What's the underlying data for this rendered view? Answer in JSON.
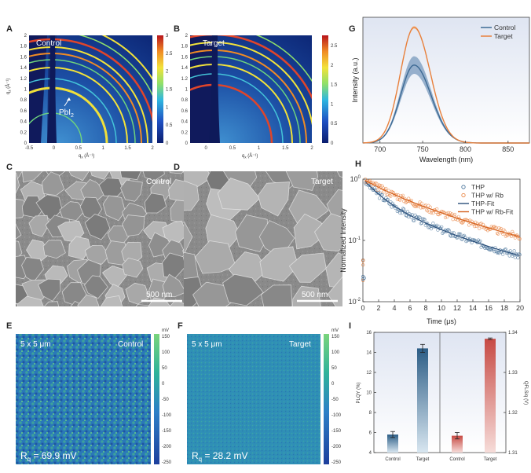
{
  "panels": {
    "A": {
      "letter": "A",
      "label": "Control",
      "annotation": "PbI",
      "annotation_sub": "2",
      "xlabel": "q",
      "xlabel_sub": "x",
      "xlabel_unit": " (Å⁻¹)",
      "ylabel": "q",
      "ylabel_sub": "z",
      "ylabel_unit": " (Å⁻¹)",
      "x_ticks": [
        "-0.5",
        "0",
        "0.5",
        "1",
        "1.5",
        "2"
      ],
      "y_ticks": [
        "0",
        "0.2",
        "0.4",
        "0.6",
        "0.8",
        "1",
        "1.2",
        "1.4",
        "1.6",
        "1.8",
        "2"
      ],
      "cbar_ticks": [
        "0",
        "0.5",
        "1",
        "1.5",
        "2",
        "2.5",
        "3"
      ]
    },
    "B": {
      "letter": "B",
      "label": "Target",
      "xlabel": "q",
      "xlabel_sub": "x",
      "xlabel_unit": " (Å⁻¹)",
      "x_ticks": [
        "0",
        "0.5",
        "1",
        "1.5",
        "2"
      ],
      "y_ticks": [
        "0",
        "0.2",
        "0.4",
        "0.6",
        "0.8",
        "1",
        "1.2",
        "1.4",
        "1.6",
        "1.8",
        "2"
      ],
      "cbar_ticks": [
        "0",
        "0.5",
        "1",
        "1.5",
        "2",
        "2.5"
      ]
    },
    "C": {
      "letter": "C",
      "label": "Control",
      "scale": "500 nm"
    },
    "D": {
      "letter": "D",
      "label": "Target",
      "scale": "500 nm"
    },
    "E": {
      "letter": "E",
      "size": "5 x 5 μm",
      "label": "Control",
      "rq_prefix": "R",
      "rq_sub": "q",
      "rq_value": " = 69.9 mV",
      "cbar_unit": "mV",
      "cbar_ticks": [
        "150",
        "100",
        "50",
        "0",
        "-50",
        "-100",
        "-150",
        "-200",
        "-250"
      ]
    },
    "F": {
      "letter": "F",
      "size": "5 x 5 μm",
      "label": "Target",
      "rq_prefix": "R",
      "rq_sub": "q",
      "rq_value": " = 28.2 mV",
      "cbar_unit": "mV",
      "cbar_ticks": [
        "150",
        "100",
        "50",
        "0",
        "-50",
        "-100",
        "-150",
        "-200",
        "-250"
      ]
    },
    "G": {
      "letter": "G"
    },
    "H": {
      "letter": "H"
    },
    "I": {
      "letter": "I"
    }
  },
  "colors": {
    "control": "#3d6a94",
    "target": "#e8803c",
    "control_fill": "#7f9fc0",
    "target_fill": "#f3c59d",
    "bar_red": "#c9504a"
  },
  "chart_data": [
    {
      "id": "G",
      "type": "line",
      "xlabel": "Wavelength (nm)",
      "ylabel": "Intensity (a.u.)",
      "xlim": [
        680,
        875
      ],
      "x_ticks": [
        700,
        750,
        800,
        850
      ],
      "series": [
        {
          "name": "Control",
          "peak_x": 740,
          "peak_y": 0.62,
          "band": 0.07,
          "sigma_left": 16,
          "sigma_right": 20
        },
        {
          "name": "Target",
          "peak_x": 740,
          "peak_y": 0.92,
          "band": 0.012,
          "sigma_left": 16,
          "sigma_right": 19
        }
      ],
      "legend": "top-right"
    },
    {
      "id": "H",
      "type": "scatter",
      "xlabel": "Time (μs)",
      "ylabel": "Normalized Intensity",
      "xlim": [
        0,
        20
      ],
      "ylim": [
        0.01,
        1
      ],
      "yscale": "log",
      "x_ticks": [
        0,
        2,
        4,
        6,
        8,
        10,
        12,
        14,
        16,
        18,
        20
      ],
      "y_ticks": [
        {
          "value": 0.01,
          "base": "10",
          "exp": "-2"
        },
        {
          "value": 0.1,
          "base": "10",
          "exp": "-1"
        },
        {
          "value": 1,
          "base": "10",
          "exp": "0"
        }
      ],
      "series": [
        {
          "name": "THP",
          "kind": "points",
          "tau1": 2.1,
          "tau2": 8.0,
          "a1": 0.55,
          "a2": 0.45,
          "floor": 0.02
        },
        {
          "name": "THP w/ Rb",
          "kind": "points",
          "tau1": 3.2,
          "tau2": 9.5,
          "a1": 0.3,
          "a2": 0.7,
          "floor": 0.03
        },
        {
          "name": "THP-Fit",
          "kind": "fit"
        },
        {
          "name": "THP w/ Rb-Fit",
          "kind": "fit"
        }
      ],
      "legend": "top-right"
    },
    {
      "id": "I",
      "type": "bar",
      "categories_left": [
        "Control",
        "Target"
      ],
      "categories_right": [
        "Control",
        "Target"
      ],
      "ylabel_left": "PLQY (%)",
      "ylabel_right": "QFLS/q (V)",
      "ylim_left": [
        4,
        16
      ],
      "ylim_right": [
        1.31,
        1.34
      ],
      "y_ticks_left": [
        4,
        6,
        8,
        10,
        12,
        14,
        16
      ],
      "y_ticks_right": [
        1.31,
        1.32,
        1.33,
        1.34
      ],
      "y_tick_labels_right": [
        "1.31",
        "1.32",
        "1.33",
        "1.34"
      ],
      "values_left": [
        5.8,
        14.4
      ],
      "errors_left": [
        0.3,
        0.4
      ],
      "values_right": [
        1.3142,
        1.3384
      ],
      "errors_right": [
        0.0008,
        0.0002
      ]
    }
  ]
}
